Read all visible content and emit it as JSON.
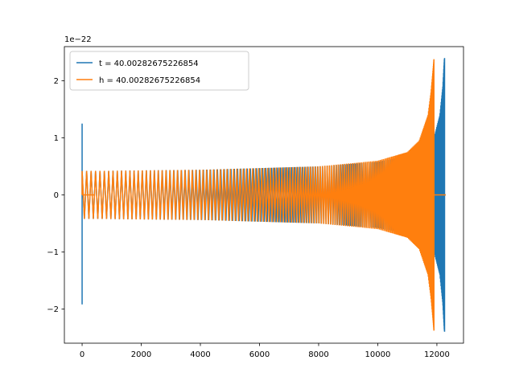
{
  "chart_data": {
    "type": "line",
    "title": "",
    "xlabel": "",
    "ylabel": "",
    "y_scale_label": "1e−22",
    "xlim": [
      -600,
      12900
    ],
    "ylim": [
      -2.6,
      2.6
    ],
    "x_ticks": [
      0,
      2000,
      4000,
      6000,
      8000,
      10000,
      12000
    ],
    "x_tick_labels": [
      "0",
      "2000",
      "4000",
      "6000",
      "8000",
      "10000",
      "12000"
    ],
    "y_ticks": [
      -2,
      -1,
      0,
      1,
      2
    ],
    "y_tick_labels": [
      "−2",
      "−1",
      "0",
      "1",
      "2"
    ],
    "grid": false,
    "legend_position": "top-left",
    "series": [
      {
        "name": "t = 40.00282675226854",
        "color": "#1f77b4",
        "envelope_x": [
          0,
          500,
          2000,
          4000,
          6000,
          8000,
          10000,
          11000,
          11500,
          11900,
          12100,
          12200,
          12250,
          12260
        ],
        "envelope_amplitude": [
          0.42,
          0.42,
          0.43,
          0.44,
          0.47,
          0.5,
          0.58,
          0.68,
          0.8,
          1.0,
          1.4,
          1.9,
          2.37,
          2.4
        ],
        "initial_spike": {
          "x": 0,
          "max": 1.25,
          "min": -1.92
        },
        "ringdown_end_x": 12260,
        "flat_after_x": 12300,
        "flat_until_x": 12300
      },
      {
        "name": "h = 40.00282675226854",
        "color": "#ff7f0e",
        "envelope_x": [
          0,
          500,
          2000,
          4000,
          6000,
          8000,
          10000,
          11000,
          11400,
          11700,
          11800,
          11870,
          11900
        ],
        "envelope_amplitude": [
          0.42,
          0.42,
          0.43,
          0.44,
          0.47,
          0.5,
          0.6,
          0.75,
          0.95,
          1.4,
          1.8,
          2.2,
          2.38
        ],
        "flat_segment": {
          "x_start": 0,
          "x_end": 400,
          "value": 0
        },
        "ringdown_end_x": 11900,
        "flat_after_x": 11930,
        "flat_until_x": 12300
      }
    ]
  }
}
